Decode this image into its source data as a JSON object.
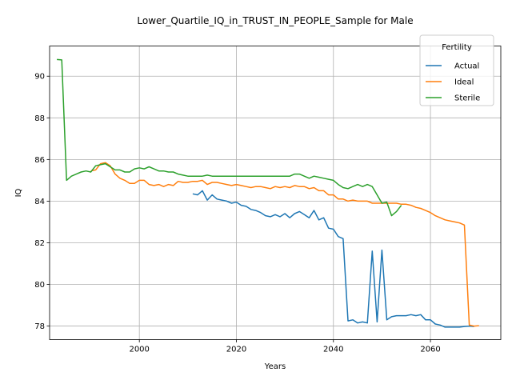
{
  "chart_data": {
    "type": "line",
    "title": "Lower_Quartile_IQ_in_TRUST_IN_PEOPLE_Sample for Male",
    "xlabel": "Years",
    "ylabel": "IQ",
    "xlim": [
      1981.5,
      2074.5
    ],
    "ylim": [
      77.35,
      91.45
    ],
    "xticks": [
      2000,
      2020,
      2040,
      2060
    ],
    "yticks": [
      78,
      80,
      82,
      84,
      86,
      88,
      90
    ],
    "grid": true,
    "legend": {
      "title": "Fertility",
      "placement": "top-right"
    },
    "series": [
      {
        "name": "Actual",
        "color": "#1f77b4",
        "x": [
          2011,
          2012,
          2013,
          2014,
          2015,
          2016,
          2017,
          2018,
          2019,
          2020,
          2021,
          2022,
          2023,
          2024,
          2025,
          2026,
          2027,
          2028,
          2029,
          2030,
          2031,
          2032,
          2033,
          2034,
          2035,
          2036,
          2037,
          2038,
          2039,
          2040,
          2041,
          2042,
          2043,
          2044,
          2045,
          2046,
          2047,
          2048,
          2049,
          2050,
          2051,
          2052,
          2053,
          2054,
          2055,
          2056,
          2057,
          2058,
          2059,
          2060,
          2061,
          2062,
          2063,
          2064,
          2065,
          2066,
          2067,
          2068,
          2069
        ],
        "y": [
          84.35,
          84.3,
          84.5,
          84.05,
          84.3,
          84.1,
          84.05,
          84.0,
          83.9,
          83.95,
          83.8,
          83.75,
          83.6,
          83.55,
          83.45,
          83.3,
          83.25,
          83.35,
          83.25,
          83.4,
          83.2,
          83.4,
          83.5,
          83.35,
          83.2,
          83.55,
          83.1,
          83.2,
          82.7,
          82.65,
          82.3,
          82.2,
          78.25,
          78.3,
          78.15,
          78.2,
          78.15,
          81.6,
          78.2,
          81.65,
          78.3,
          78.45,
          78.5,
          78.5,
          78.5,
          78.55,
          78.5,
          78.55,
          78.3,
          78.3,
          78.1,
          78.05,
          77.95,
          77.95,
          77.95,
          77.95,
          77.98,
          78.0,
          77.98
        ]
      },
      {
        "name": "Ideal",
        "color": "#ff7f0e",
        "x": [
          1990,
          1991,
          1992,
          1993,
          1994,
          1995,
          1996,
          1997,
          1998,
          1999,
          2000,
          2001,
          2002,
          2003,
          2004,
          2005,
          2006,
          2007,
          2008,
          2009,
          2010,
          2011,
          2012,
          2013,
          2014,
          2015,
          2016,
          2017,
          2018,
          2019,
          2020,
          2021,
          2022,
          2023,
          2024,
          2025,
          2026,
          2027,
          2028,
          2029,
          2030,
          2031,
          2032,
          2033,
          2034,
          2035,
          2036,
          2037,
          2038,
          2039,
          2040,
          2041,
          2042,
          2043,
          2044,
          2045,
          2046,
          2047,
          2048,
          2049,
          2050,
          2051,
          2052,
          2053,
          2054,
          2055,
          2056,
          2057,
          2058,
          2059,
          2060,
          2061,
          2062,
          2063,
          2064,
          2065,
          2066,
          2067,
          2068,
          2069,
          2070
        ],
        "y": [
          85.45,
          85.5,
          85.8,
          85.85,
          85.7,
          85.3,
          85.1,
          85.0,
          84.85,
          84.85,
          85.0,
          85.0,
          84.8,
          84.75,
          84.8,
          84.7,
          84.8,
          84.75,
          84.95,
          84.9,
          84.9,
          84.95,
          84.95,
          85.0,
          84.8,
          84.9,
          84.9,
          84.85,
          84.8,
          84.75,
          84.8,
          84.75,
          84.7,
          84.65,
          84.7,
          84.7,
          84.65,
          84.6,
          84.7,
          84.65,
          84.7,
          84.65,
          84.75,
          84.7,
          84.7,
          84.6,
          84.65,
          84.5,
          84.5,
          84.3,
          84.3,
          84.1,
          84.1,
          84.0,
          84.05,
          84.0,
          84.0,
          84.0,
          83.9,
          83.9,
          83.9,
          83.9,
          83.9,
          83.9,
          83.85,
          83.85,
          83.8,
          83.7,
          83.65,
          83.55,
          83.45,
          83.3,
          83.2,
          83.1,
          83.05,
          83.0,
          82.95,
          82.85,
          78.05,
          78.0,
          78.02
        ]
      },
      {
        "name": "Sterile",
        "color": "#2ca02c",
        "x": [
          1983,
          1984,
          1985,
          1986,
          1987,
          1988,
          1989,
          1990,
          1991,
          1992,
          1993,
          1994,
          1995,
          1996,
          1997,
          1998,
          1999,
          2000,
          2001,
          2002,
          2003,
          2004,
          2005,
          2006,
          2007,
          2008,
          2009,
          2010,
          2011,
          2012,
          2013,
          2014,
          2015,
          2016,
          2017,
          2018,
          2019,
          2020,
          2021,
          2022,
          2023,
          2024,
          2025,
          2026,
          2027,
          2028,
          2029,
          2030,
          2031,
          2032,
          2033,
          2034,
          2035,
          2036,
          2037,
          2038,
          2039,
          2040,
          2041,
          2042,
          2043,
          2044,
          2045,
          2046,
          2047,
          2048,
          2049,
          2050,
          2051,
          2052,
          2053,
          2054
        ],
        "y": [
          90.8,
          90.78,
          85.0,
          85.2,
          85.3,
          85.4,
          85.45,
          85.4,
          85.7,
          85.75,
          85.8,
          85.65,
          85.5,
          85.5,
          85.4,
          85.4,
          85.55,
          85.6,
          85.55,
          85.65,
          85.55,
          85.45,
          85.45,
          85.4,
          85.4,
          85.3,
          85.25,
          85.2,
          85.2,
          85.2,
          85.2,
          85.25,
          85.2,
          85.2,
          85.2,
          85.2,
          85.2,
          85.2,
          85.2,
          85.2,
          85.2,
          85.2,
          85.2,
          85.2,
          85.2,
          85.2,
          85.2,
          85.2,
          85.2,
          85.3,
          85.3,
          85.2,
          85.1,
          85.2,
          85.15,
          85.1,
          85.05,
          85.0,
          84.8,
          84.65,
          84.6,
          84.7,
          84.8,
          84.7,
          84.8,
          84.7,
          84.3,
          83.9,
          83.95,
          83.3,
          83.5,
          83.8
        ]
      }
    ]
  }
}
